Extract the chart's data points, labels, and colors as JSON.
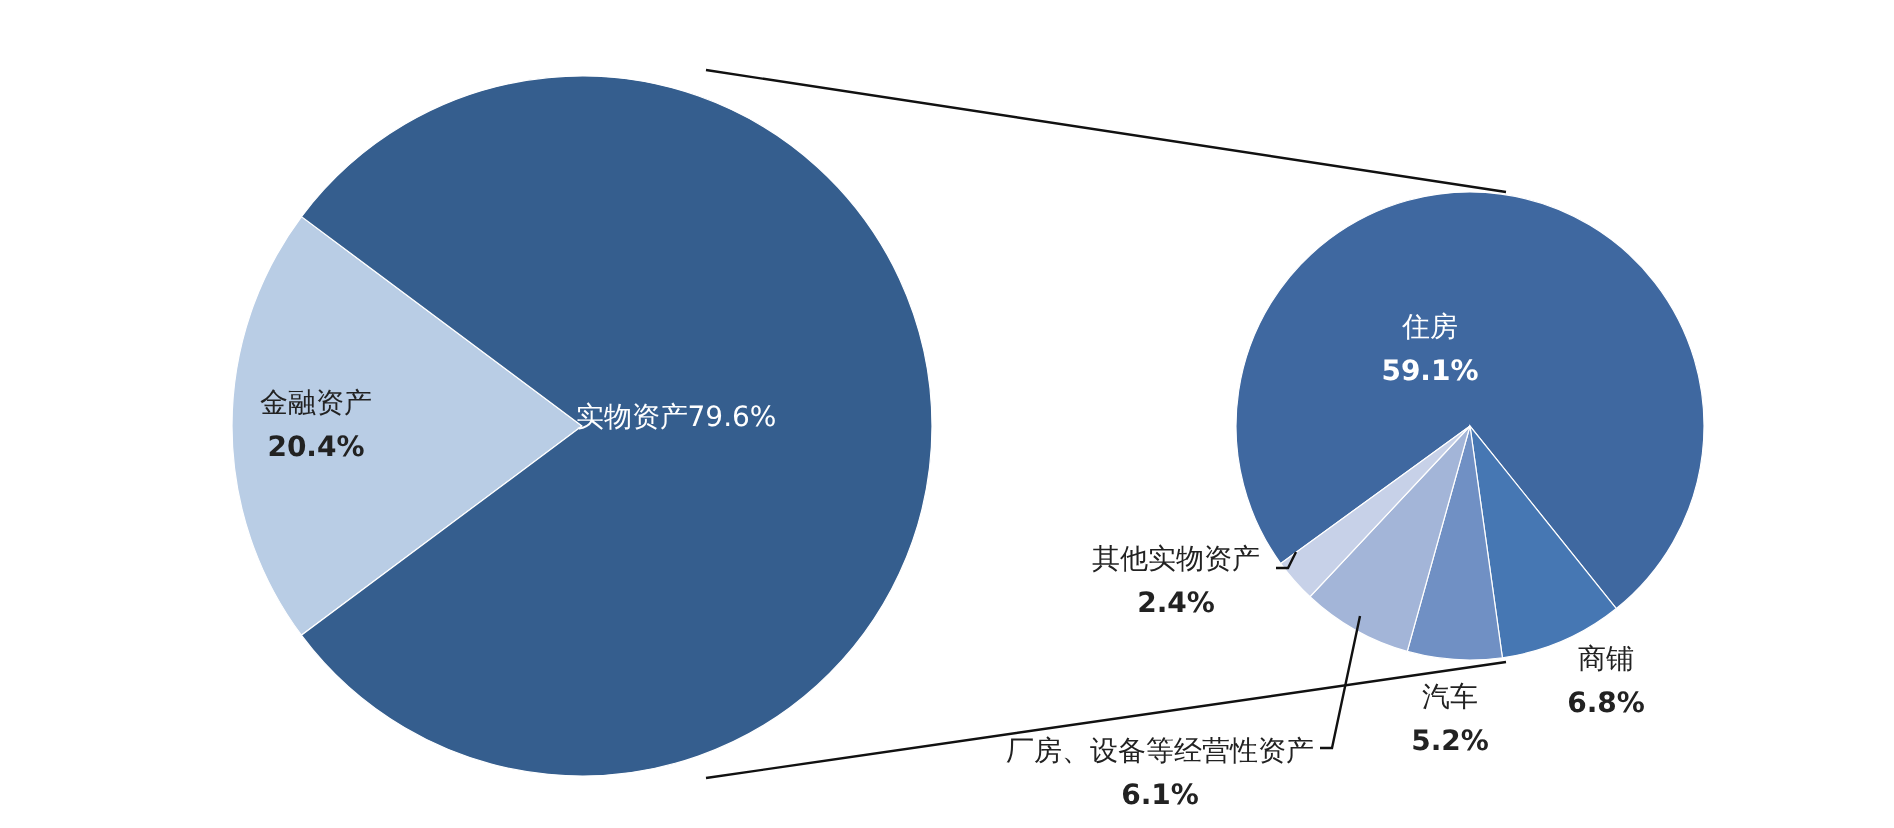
{
  "chart_data": [
    {
      "type": "pie",
      "categories": [
        "金融资产",
        "实物资产"
      ],
      "values": [
        20.4,
        79.6
      ],
      "value_labels": [
        "20.4%",
        "79.6%"
      ],
      "colors": [
        "#b9cde5",
        "#355e8e"
      ]
    },
    {
      "type": "pie",
      "categories": [
        "住房",
        "商铺",
        "汽车",
        "厂房、设备等经营性资产",
        "其他实物资产"
      ],
      "values": [
        59.1,
        6.8,
        5.2,
        6.1,
        2.4
      ],
      "value_labels": [
        "59.1%",
        "6.8%",
        "5.2%",
        "6.1%",
        "2.4%"
      ],
      "colors": [
        "#3f68a0",
        "#4677b3",
        "#7090c4",
        "#a3b5d8",
        "#c7d1e8"
      ]
    }
  ]
}
